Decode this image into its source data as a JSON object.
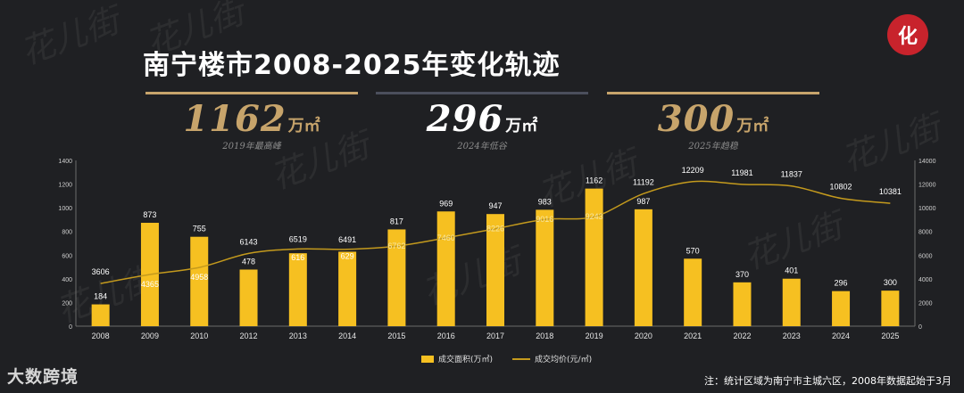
{
  "title": "南宁楼市2008-2025年变化轨迹",
  "highlights": [
    {
      "value": "1162",
      "unit": "万㎡",
      "caption": "2019年最高峰",
      "color": "#c7a46b",
      "line_color": "#c7a46b"
    },
    {
      "value": "296",
      "unit": "万㎡",
      "caption": "2024年低谷",
      "color": "#ffffff",
      "line_color": "#4b4f5c"
    },
    {
      "value": "300",
      "unit": "万㎡",
      "caption": "2025年趋稳",
      "color": "#c7a46b",
      "line_color": "#c7a46b"
    }
  ],
  "logo_glyph": "化",
  "brand": "大数跨境",
  "note": "注：统计区域为南宁市主城六区，2008年数据起始于3月",
  "legend": {
    "bar_label": "成交面积(万㎡)",
    "line_label": "成交均价(元/㎡)"
  },
  "watermark_text": "花儿街",
  "chart_data": {
    "type": "bar",
    "categories": [
      "2008",
      "2009",
      "2010",
      "2012",
      "2013",
      "2014",
      "2015",
      "2016",
      "2017",
      "2018",
      "2019",
      "2020",
      "2021",
      "2022",
      "2023",
      "2024",
      "2025"
    ],
    "series": [
      {
        "name": "成交面积(万㎡)",
        "type": "bar",
        "axis": "left",
        "color": "#f6c021",
        "values": [
          184,
          873,
          755,
          478,
          616,
          629,
          817,
          969,
          947,
          983,
          1162,
          987,
          570,
          370,
          401,
          296,
          300
        ]
      },
      {
        "name": "成交均价(元/㎡)",
        "type": "line",
        "axis": "right",
        "color": "#c49a1d",
        "values": [
          3606,
          4365,
          4958,
          6143,
          6519,
          6491,
          6762,
          7460,
          8226,
          9016,
          9243,
          11192,
          12209,
          11981,
          11837,
          10802,
          10381
        ]
      }
    ],
    "bar_labels": [
      "184",
      "873",
      "755",
      "478",
      "616",
      "629",
      "817",
      "969",
      "947",
      "983",
      "1162",
      "987",
      "570",
      "370",
      "401",
      "296",
      "300"
    ],
    "line_labels": [
      "3606",
      "4365",
      "4958",
      "6143",
      "6519",
      "6491",
      "6762",
      "7460",
      "8226",
      "9016",
      "9243",
      "11192",
      "12209",
      "11981",
      "11837",
      "10802",
      "10381"
    ],
    "y_left": {
      "min": 0,
      "max": 1400,
      "ticks": [
        0,
        200,
        400,
        600,
        800,
        1000,
        1200,
        1400
      ]
    },
    "y_right": {
      "min": 0,
      "max": 14000,
      "ticks": [
        0,
        2000,
        4000,
        6000,
        8000,
        10000,
        12000,
        14000
      ]
    },
    "legend_position": "bottom-center"
  }
}
